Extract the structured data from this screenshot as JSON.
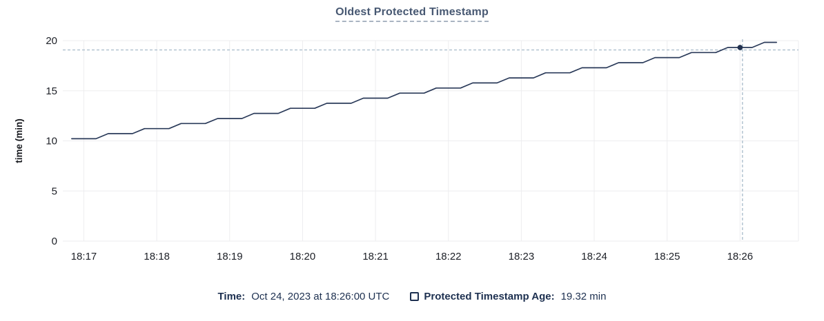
{
  "title": "Oldest Protected Timestamp",
  "legend": {
    "time_label": "Time:",
    "time_value": "Oct 24, 2023 at 18:26:00 UTC",
    "series_label": "Protected Timestamp Age:",
    "series_value": "19.32 min"
  },
  "colors": {
    "line": "#2a3a59",
    "dot": "#22314f",
    "grid": "#ededef",
    "crosshair": "#a6bac9",
    "title": "#475872",
    "tick_text": "#1c1f26",
    "axis_label_text": "#16181d",
    "legend_text": "#1d3050"
  },
  "chart_data": {
    "type": "line",
    "title": "Oldest Protected Timestamp",
    "xlabel": "",
    "ylabel": "time (min)",
    "ylim": [
      0,
      20
    ],
    "yticks": [
      0,
      5,
      10,
      15,
      20
    ],
    "xticks": [
      "18:17",
      "18:18",
      "18:19",
      "18:20",
      "18:21",
      "18:22",
      "18:23",
      "18:24",
      "18:25",
      "18:26"
    ],
    "grid": true,
    "legend_position": "bottom",
    "series": [
      {
        "name": "Protected Timestamp Age",
        "unit": "min",
        "points": [
          [
            "18:16:50",
            10.21
          ],
          [
            "18:17:10",
            10.21
          ],
          [
            "18:17:20",
            10.72
          ],
          [
            "18:17:40",
            10.72
          ],
          [
            "18:17:50",
            11.22
          ],
          [
            "18:18:10",
            11.22
          ],
          [
            "18:18:20",
            11.73
          ],
          [
            "18:18:40",
            11.73
          ],
          [
            "18:18:50",
            12.23
          ],
          [
            "18:19:10",
            12.23
          ],
          [
            "18:19:20",
            12.74
          ],
          [
            "18:19:40",
            12.74
          ],
          [
            "18:19:50",
            13.25
          ],
          [
            "18:20:10",
            13.25
          ],
          [
            "18:20:20",
            13.75
          ],
          [
            "18:20:40",
            13.75
          ],
          [
            "18:20:50",
            14.26
          ],
          [
            "18:21:10",
            14.26
          ],
          [
            "18:21:20",
            14.76
          ],
          [
            "18:21:40",
            14.76
          ],
          [
            "18:21:50",
            15.27
          ],
          [
            "18:22:10",
            15.27
          ],
          [
            "18:22:20",
            15.78
          ],
          [
            "18:22:40",
            15.78
          ],
          [
            "18:22:50",
            16.28
          ],
          [
            "18:23:10",
            16.28
          ],
          [
            "18:23:20",
            16.79
          ],
          [
            "18:23:40",
            16.79
          ],
          [
            "18:23:50",
            17.29
          ],
          [
            "18:24:10",
            17.29
          ],
          [
            "18:24:20",
            17.8
          ],
          [
            "18:24:40",
            17.8
          ],
          [
            "18:24:50",
            18.31
          ],
          [
            "18:25:10",
            18.31
          ],
          [
            "18:25:20",
            18.81
          ],
          [
            "18:25:40",
            18.81
          ],
          [
            "18:25:50",
            19.32
          ],
          [
            "18:26:10",
            19.32
          ],
          [
            "18:26:20",
            19.83
          ],
          [
            "18:26:30",
            19.83
          ]
        ]
      }
    ],
    "hover": {
      "time": "18:26:00",
      "value": 19.32,
      "time_label": "Oct 24, 2023 at 18:26:00 UTC",
      "value_label": "19.32 min",
      "crosshair_time": "18:26:02",
      "crosshair_value": 19.07
    }
  }
}
